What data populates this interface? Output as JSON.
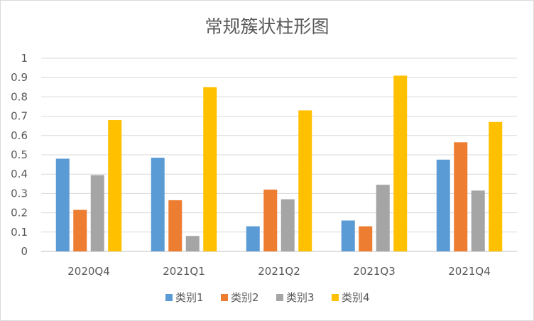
{
  "chart_data": {
    "type": "bar",
    "title": "常规簇状柱形图",
    "xlabel": "",
    "ylabel": "",
    "ylim": [
      0,
      1
    ],
    "yticks": [
      "0",
      "0.1",
      "0.2",
      "0.3",
      "0.4",
      "0.5",
      "0.6",
      "0.7",
      "0.8",
      "0.9",
      "1"
    ],
    "grid": true,
    "legend_position": "bottom",
    "categories": [
      "2020Q4",
      "2021Q1",
      "2021Q2",
      "2021Q3",
      "2021Q4"
    ],
    "series": [
      {
        "name": "类别1",
        "color": "#5b9bd5",
        "values": [
          0.48,
          0.485,
          0.13,
          0.16,
          0.475
        ]
      },
      {
        "name": "类别2",
        "color": "#ed7d31",
        "values": [
          0.215,
          0.265,
          0.32,
          0.13,
          0.565
        ]
      },
      {
        "name": "类别3",
        "color": "#a5a5a5",
        "values": [
          0.395,
          0.08,
          0.27,
          0.345,
          0.315
        ]
      },
      {
        "name": "类别4",
        "color": "#ffc000",
        "values": [
          0.68,
          0.85,
          0.73,
          0.91,
          0.67
        ]
      }
    ]
  }
}
